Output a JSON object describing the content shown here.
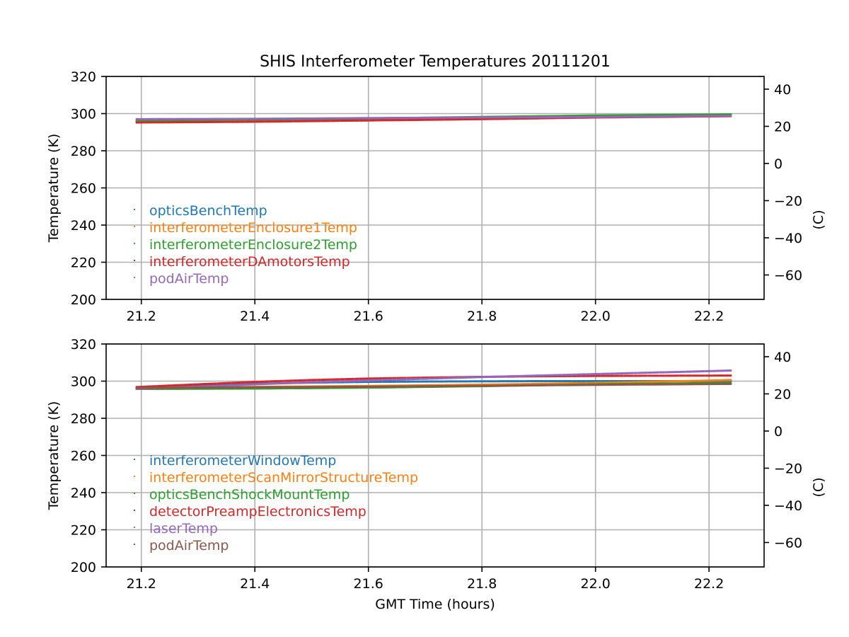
{
  "title": "SHIS Interferometer Temperatures 20111201",
  "xlabel": "GMT Time (hours)",
  "colors": {
    "blue": "#1f77b4",
    "orange": "#ff7f0e",
    "green": "#2ca02c",
    "red": "#d62728",
    "purple": "#9467bd",
    "brown": "#8c564b",
    "grid": "#b0b0b0"
  },
  "chart_data": [
    {
      "type": "scatter",
      "title": "SHIS Interferometer Temperatures 20111201",
      "xlabel": "",
      "ylabel": "Temperature (K)",
      "ylabel_right": "(C)",
      "xlim": [
        21.138,
        22.297
      ],
      "ylim": [
        200,
        320
      ],
      "ylim_right": [
        -73.15,
        46.85
      ],
      "xticks": [
        "21.2",
        "21.4",
        "21.6",
        "21.8",
        "22.0",
        "22.2"
      ],
      "yticks": [
        "200",
        "220",
        "240",
        "260",
        "280",
        "300",
        "320"
      ],
      "yticks_right": [
        "−60",
        "−40",
        "−20",
        "0",
        "20",
        "40"
      ],
      "grid": true,
      "legend_position": "center-left",
      "series": [
        {
          "name": "opticsBenchTemp",
          "color": "#1f77b4",
          "x": [
            21.19,
            21.4,
            21.6,
            21.8,
            22.0,
            22.24
          ],
          "y": [
            296.0,
            296.6,
            297.2,
            298.0,
            298.8,
            299.5
          ]
        },
        {
          "name": "interferometerEnclosure1Temp",
          "color": "#ff7f0e",
          "x": [
            21.19,
            21.4,
            21.6,
            21.8,
            22.0,
            22.24
          ],
          "y": [
            295.8,
            296.4,
            297.0,
            297.8,
            298.6,
            299.2
          ]
        },
        {
          "name": "interferometerEnclosure2Temp",
          "color": "#2ca02c",
          "x": [
            21.19,
            21.4,
            21.6,
            21.8,
            22.0,
            22.24
          ],
          "y": [
            296.2,
            296.8,
            297.4,
            298.2,
            299.0,
            299.6
          ]
        },
        {
          "name": "interferometerDAmotorsTemp",
          "color": "#d62728",
          "x": [
            21.19,
            21.4,
            21.6,
            21.8,
            22.0,
            22.24
          ],
          "y": [
            295.2,
            295.6,
            296.3,
            297.0,
            297.9,
            298.6
          ]
        },
        {
          "name": "podAirTemp",
          "color": "#9467bd",
          "x": [
            21.19,
            21.4,
            21.6,
            21.8,
            22.0,
            22.24
          ],
          "y": [
            297.0,
            297.2,
            297.6,
            297.9,
            298.2,
            298.8
          ]
        }
      ]
    },
    {
      "type": "scatter",
      "title": "",
      "xlabel": "GMT Time (hours)",
      "ylabel": "Temperature (K)",
      "ylabel_right": "(C)",
      "xlim": [
        21.138,
        22.297
      ],
      "ylim": [
        200,
        320
      ],
      "ylim_right": [
        -73.15,
        46.85
      ],
      "xticks": [
        "21.2",
        "21.4",
        "21.6",
        "21.8",
        "22.0",
        "22.2"
      ],
      "yticks": [
        "200",
        "220",
        "240",
        "260",
        "280",
        "300",
        "320"
      ],
      "yticks_right": [
        "−60",
        "−40",
        "−20",
        "0",
        "20",
        "40"
      ],
      "grid": true,
      "legend_position": "center-left",
      "series": [
        {
          "name": "interferometerWindowTemp",
          "color": "#1f77b4",
          "x": [
            21.19,
            21.3,
            21.4,
            21.5,
            21.6,
            21.7,
            21.8,
            21.9,
            22.0,
            22.1,
            22.24
          ],
          "y": [
            296.0,
            297.5,
            298.6,
            299.2,
            299.6,
            299.8,
            299.9,
            300.0,
            300.0,
            300.0,
            300.0
          ]
        },
        {
          "name": "interferometerScanMirrorStructureTemp",
          "color": "#ff7f0e",
          "x": [
            21.19,
            21.4,
            21.6,
            21.8,
            22.0,
            22.24
          ],
          "y": [
            296.5,
            296.9,
            297.4,
            298.1,
            299.0,
            300.6
          ]
        },
        {
          "name": "opticsBenchShockMountTemp",
          "color": "#2ca02c",
          "x": [
            21.19,
            21.4,
            21.6,
            21.8,
            22.0,
            22.24
          ],
          "y": [
            295.8,
            296.0,
            296.5,
            297.3,
            298.3,
            299.1
          ]
        },
        {
          "name": "detectorPreampElectronicsTemp",
          "color": "#d62728",
          "x": [
            21.19,
            21.3,
            21.4,
            21.5,
            21.6,
            21.7,
            21.8,
            21.9,
            22.0,
            22.1,
            22.24
          ],
          "y": [
            296.8,
            298.3,
            299.6,
            300.6,
            301.4,
            301.9,
            302.3,
            302.6,
            302.8,
            302.9,
            303.0
          ]
        },
        {
          "name": "laserTemp",
          "color": "#9467bd",
          "x": [
            21.19,
            21.3,
            21.4,
            21.5,
            21.6,
            21.7,
            21.8,
            21.9,
            22.0,
            22.1,
            22.24
          ],
          "y": [
            295.8,
            297.0,
            298.3,
            299.4,
            300.4,
            301.3,
            302.2,
            303.0,
            303.8,
            304.6,
            305.7
          ]
        },
        {
          "name": "podAirTemp",
          "color": "#8c564b",
          "x": [
            21.19,
            21.4,
            21.6,
            21.8,
            22.0,
            22.24
          ],
          "y": [
            296.3,
            296.7,
            297.0,
            297.5,
            298.0,
            298.5
          ]
        }
      ]
    }
  ]
}
